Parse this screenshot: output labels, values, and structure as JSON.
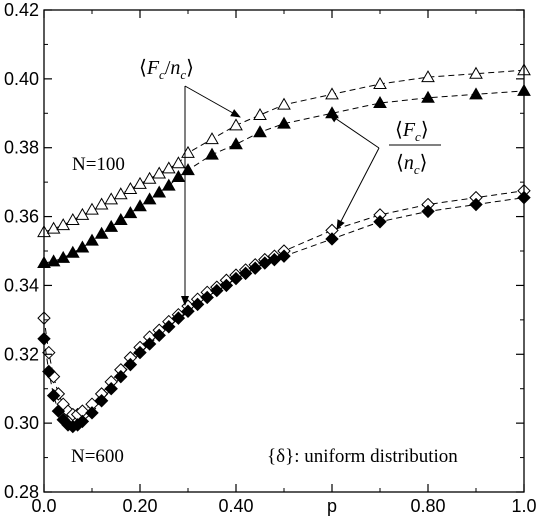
{
  "chart_data": {
    "type": "scatter",
    "xlabel": "p",
    "ylabel": "",
    "xlim": [
      0.0,
      1.0
    ],
    "ylim": [
      0.28,
      0.42
    ],
    "x_ticks": [
      0.0,
      0.2,
      0.4,
      0.6,
      0.8,
      1.0
    ],
    "x_tick_labels": [
      "0.0",
      "0.20",
      "0.40",
      "p",
      "0.80",
      "1.0"
    ],
    "y_ticks": [
      0.28,
      0.3,
      0.32,
      0.34,
      0.36,
      0.38,
      0.4,
      0.42
    ],
    "y_tick_labels": [
      "0.28",
      "0.30",
      "0.32",
      "0.34",
      "0.36",
      "0.38",
      "0.40",
      "0.42"
    ],
    "grid": false,
    "series": [
      {
        "marker": "open-triangle",
        "line": "dashed",
        "x": [
          0.0,
          0.02,
          0.04,
          0.06,
          0.08,
          0.1,
          0.12,
          0.14,
          0.16,
          0.18,
          0.2,
          0.22,
          0.24,
          0.26,
          0.28,
          0.3,
          0.35,
          0.4,
          0.45,
          0.5,
          0.6,
          0.7,
          0.8,
          0.9,
          1.0
        ],
        "y": [
          0.3555,
          0.3565,
          0.3575,
          0.359,
          0.3605,
          0.362,
          0.3635,
          0.365,
          0.3665,
          0.368,
          0.3695,
          0.371,
          0.3725,
          0.374,
          0.3755,
          0.3785,
          0.3825,
          0.3865,
          0.3895,
          0.3925,
          0.3955,
          0.3985,
          0.4005,
          0.4015,
          0.4025
        ]
      },
      {
        "marker": "filled-triangle",
        "line": "dashed",
        "x": [
          0.0,
          0.02,
          0.04,
          0.06,
          0.08,
          0.1,
          0.12,
          0.14,
          0.16,
          0.18,
          0.2,
          0.22,
          0.24,
          0.26,
          0.28,
          0.3,
          0.35,
          0.4,
          0.45,
          0.5,
          0.6,
          0.7,
          0.8,
          0.9,
          1.0
        ],
        "y": [
          0.3465,
          0.347,
          0.348,
          0.3495,
          0.351,
          0.353,
          0.355,
          0.357,
          0.359,
          0.361,
          0.363,
          0.365,
          0.367,
          0.369,
          0.3715,
          0.3735,
          0.378,
          0.381,
          0.3845,
          0.387,
          0.39,
          0.393,
          0.3945,
          0.3955,
          0.3965
        ]
      },
      {
        "marker": "open-diamond",
        "line": "dashed",
        "x": [
          0.0,
          0.01,
          0.02,
          0.03,
          0.04,
          0.05,
          0.06,
          0.07,
          0.08,
          0.1,
          0.12,
          0.14,
          0.16,
          0.18,
          0.2,
          0.22,
          0.24,
          0.26,
          0.28,
          0.3,
          0.32,
          0.34,
          0.36,
          0.38,
          0.4,
          0.42,
          0.44,
          0.46,
          0.48,
          0.5,
          0.6,
          0.7,
          0.8,
          0.9,
          1.0
        ],
        "y": [
          0.3305,
          0.3205,
          0.3135,
          0.3085,
          0.3055,
          0.3035,
          0.3025,
          0.3025,
          0.3035,
          0.3055,
          0.3085,
          0.312,
          0.3155,
          0.319,
          0.322,
          0.325,
          0.327,
          0.3295,
          0.3315,
          0.334,
          0.336,
          0.338,
          0.3395,
          0.3415,
          0.343,
          0.3445,
          0.346,
          0.3475,
          0.3485,
          0.35,
          0.356,
          0.3605,
          0.3635,
          0.3655,
          0.3675
        ]
      },
      {
        "marker": "filled-diamond",
        "line": "dashed",
        "x": [
          0.0,
          0.01,
          0.02,
          0.03,
          0.04,
          0.05,
          0.06,
          0.07,
          0.08,
          0.1,
          0.12,
          0.14,
          0.16,
          0.18,
          0.2,
          0.22,
          0.24,
          0.26,
          0.28,
          0.3,
          0.32,
          0.34,
          0.36,
          0.38,
          0.4,
          0.42,
          0.44,
          0.46,
          0.48,
          0.5,
          0.6,
          0.7,
          0.8,
          0.9,
          1.0
        ],
        "y": [
          0.3245,
          0.315,
          0.308,
          0.3035,
          0.301,
          0.2995,
          0.299,
          0.2995,
          0.3005,
          0.303,
          0.3065,
          0.31,
          0.3135,
          0.317,
          0.3205,
          0.323,
          0.3255,
          0.328,
          0.3305,
          0.3325,
          0.3345,
          0.3365,
          0.3385,
          0.34,
          0.342,
          0.3435,
          0.345,
          0.3465,
          0.3475,
          0.3485,
          0.3535,
          0.3585,
          0.3615,
          0.3635,
          0.3655
        ]
      }
    ],
    "annotations": {
      "label_ratio_mean": "⟨F_c/n_c⟩",
      "label_mean_ratio_num": "⟨F_c⟩",
      "label_mean_ratio_den": "⟨n_c⟩",
      "n100": "N=100",
      "n600": "N=600",
      "distribution": "{δ}: uniform distribution"
    }
  }
}
